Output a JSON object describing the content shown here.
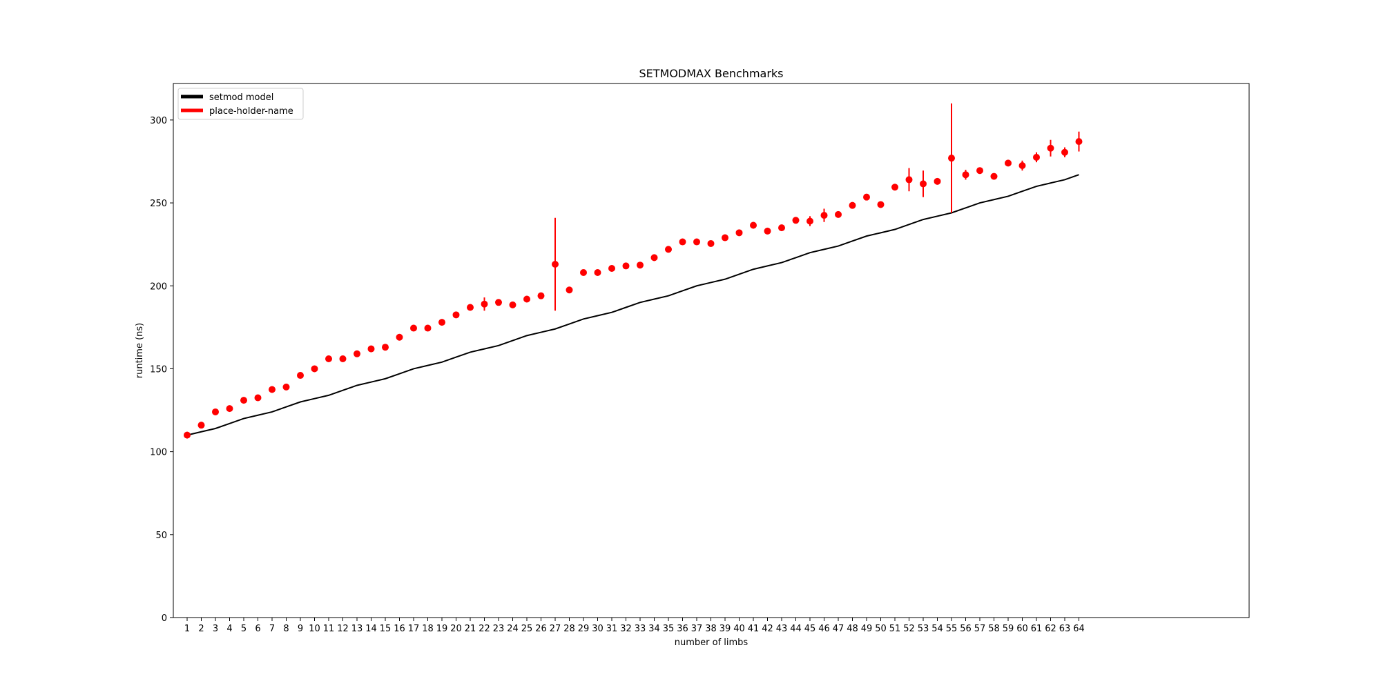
{
  "chart_data": {
    "type": "scatter",
    "title": "SETMODMAX Benchmarks",
    "xlabel": "number of limbs",
    "ylabel": "runtime (ns)",
    "ylim": [
      0,
      322
    ],
    "yticks": [
      0,
      50,
      100,
      150,
      200,
      250,
      300
    ],
    "x": [
      1,
      2,
      3,
      4,
      5,
      6,
      7,
      8,
      9,
      10,
      11,
      12,
      13,
      14,
      15,
      16,
      17,
      18,
      19,
      20,
      21,
      22,
      23,
      24,
      25,
      26,
      27,
      28,
      29,
      30,
      31,
      32,
      33,
      34,
      35,
      36,
      37,
      38,
      39,
      40,
      41,
      42,
      43,
      44,
      45,
      46,
      47,
      48,
      49,
      50,
      51,
      52,
      53,
      54,
      55,
      56,
      57,
      58,
      59,
      60,
      61,
      62,
      63,
      64
    ],
    "legend": {
      "placement": "top-left"
    },
    "grid": false,
    "series": [
      {
        "name": "setmod model",
        "kind": "line",
        "color": "#000000",
        "values": [
          110,
          112,
          114,
          117,
          120,
          122,
          124,
          127,
          130,
          132,
          134,
          137,
          140,
          142,
          144,
          147,
          150,
          152,
          154,
          157,
          160,
          162,
          164,
          167,
          170,
          172,
          174,
          177,
          180,
          182,
          184,
          187,
          190,
          192,
          194,
          197,
          200,
          202,
          204,
          207,
          210,
          212,
          214,
          217,
          220,
          222,
          224,
          227,
          230,
          232,
          234,
          237,
          240,
          242,
          244,
          247,
          250,
          252,
          254,
          257,
          260,
          262,
          264,
          267
        ]
      },
      {
        "name": "place-holder-name",
        "kind": "errorbar",
        "color": "#ff0000",
        "values": [
          110,
          116,
          124,
          126,
          131,
          132.5,
          137.5,
          139,
          146,
          150,
          156,
          156,
          159,
          162,
          163,
          169,
          174.5,
          174.5,
          178,
          182.5,
          187,
          189,
          190,
          188.5,
          192,
          194,
          213,
          197.5,
          208,
          208,
          210.5,
          212,
          212.5,
          217,
          222,
          226.5,
          226.5,
          225.5,
          229,
          232,
          236.5,
          233,
          235,
          239.5,
          239,
          242.5,
          243,
          248.5,
          253.5,
          249,
          259.5,
          264,
          261.5,
          263,
          277,
          267,
          269.5,
          266,
          274,
          272.5,
          277.5,
          283,
          280.5,
          287
        ],
        "errors": [
          2,
          1,
          1,
          1,
          1,
          1,
          1,
          1,
          1,
          1,
          1,
          1,
          1,
          2,
          1,
          1,
          1,
          1,
          1,
          1,
          1,
          4,
          1,
          1,
          1,
          1,
          28,
          1,
          1,
          1,
          1,
          1,
          1,
          2,
          1,
          1,
          1,
          1,
          1,
          1,
          2,
          1,
          1,
          2,
          3,
          4,
          1,
          1,
          1,
          1,
          1,
          7,
          8,
          1,
          33,
          3,
          1,
          1,
          1,
          3,
          3,
          5,
          3,
          6
        ]
      }
    ]
  }
}
